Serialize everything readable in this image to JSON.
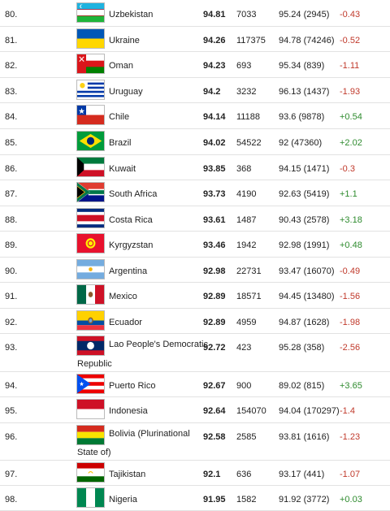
{
  "colors": {
    "positive": "#2e8b2e",
    "negative": "#c0392b"
  },
  "rows": [
    {
      "rank": "80.",
      "country": "Uzbekistan",
      "score": "94.81",
      "population": "7033",
      "previous": "95.24 (2945)",
      "change": "-0.43",
      "flag_icon": "uzbekistan-flag-icon"
    },
    {
      "rank": "81.",
      "country": "Ukraine",
      "score": "94.26",
      "population": "117375",
      "previous": "94.78 (74246)",
      "change": "-0.52",
      "flag_icon": "ukraine-flag-icon"
    },
    {
      "rank": "82.",
      "country": "Oman",
      "score": "94.23",
      "population": "693",
      "previous": "95.34 (839)",
      "change": "-1.11",
      "flag_icon": "oman-flag-icon"
    },
    {
      "rank": "83.",
      "country": "Uruguay",
      "score": "94.2",
      "population": "3232",
      "previous": "96.13 (1437)",
      "change": "-1.93",
      "flag_icon": "uruguay-flag-icon"
    },
    {
      "rank": "84.",
      "country": "Chile",
      "score": "94.14",
      "population": "11188",
      "previous": "93.6 (9878)",
      "change": "+0.54",
      "flag_icon": "chile-flag-icon"
    },
    {
      "rank": "85.",
      "country": "Brazil",
      "score": "94.02",
      "population": "54522",
      "previous": "92 (47360)",
      "change": "+2.02",
      "flag_icon": "brazil-flag-icon"
    },
    {
      "rank": "86.",
      "country": "Kuwait",
      "score": "93.85",
      "population": "368",
      "previous": "94.15 (1471)",
      "change": "-0.3",
      "flag_icon": "kuwait-flag-icon"
    },
    {
      "rank": "87.",
      "country": "South Africa",
      "score": "93.73",
      "population": "4190",
      "previous": "92.63 (5419)",
      "change": "+1.1",
      "flag_icon": "south-africa-flag-icon"
    },
    {
      "rank": "88.",
      "country": "Costa Rica",
      "score": "93.61",
      "population": "1487",
      "previous": "90.43 (2578)",
      "change": "+3.18",
      "flag_icon": "costa-rica-flag-icon"
    },
    {
      "rank": "89.",
      "country": "Kyrgyzstan",
      "score": "93.46",
      "population": "1942",
      "previous": "92.98 (1991)",
      "change": "+0.48",
      "flag_icon": "kyrgyzstan-flag-icon"
    },
    {
      "rank": "90.",
      "country": "Argentina",
      "score": "92.98",
      "population": "22731",
      "previous": "93.47 (16070)",
      "change": "-0.49",
      "flag_icon": "argentina-flag-icon"
    },
    {
      "rank": "91.",
      "country": "Mexico",
      "score": "92.89",
      "population": "18571",
      "previous": "94.45 (13480)",
      "change": "-1.56",
      "flag_icon": "mexico-flag-icon"
    },
    {
      "rank": "92.",
      "country": "Ecuador",
      "score": "92.89",
      "population": "4959",
      "previous": "94.87 (1628)",
      "change": "-1.98",
      "flag_icon": "ecuador-flag-icon"
    },
    {
      "rank": "93.",
      "country": "Lao People's Democratic",
      "country_cont": "Republic",
      "score": "92.72",
      "population": "423",
      "previous": "95.28 (358)",
      "change": "-2.56",
      "flag_icon": "laos-flag-icon"
    },
    {
      "rank": "94.",
      "country": "Puerto Rico",
      "score": "92.67",
      "population": "900",
      "previous": "89.02 (815)",
      "change": "+3.65",
      "flag_icon": "puerto-rico-flag-icon"
    },
    {
      "rank": "95.",
      "country": "Indonesia",
      "score": "92.64",
      "population": "154070",
      "previous": "94.04 (170297)",
      "change": "-1.4",
      "flag_icon": "indonesia-flag-icon"
    },
    {
      "rank": "96.",
      "country": "Bolivia (Plurinational",
      "country_cont": "State of)",
      "score": "92.58",
      "population": "2585",
      "previous": "93.81 (1616)",
      "change": "-1.23",
      "flag_icon": "bolivia-flag-icon"
    },
    {
      "rank": "97.",
      "country": "Tajikistan",
      "score": "92.1",
      "population": "636",
      "previous": "93.17 (441)",
      "change": "-1.07",
      "flag_icon": "tajikistan-flag-icon"
    },
    {
      "rank": "98.",
      "country": "Nigeria",
      "score": "91.95",
      "population": "1582",
      "previous": "91.92 (3772)",
      "change": "+0.03",
      "flag_icon": "nigeria-flag-icon"
    }
  ]
}
